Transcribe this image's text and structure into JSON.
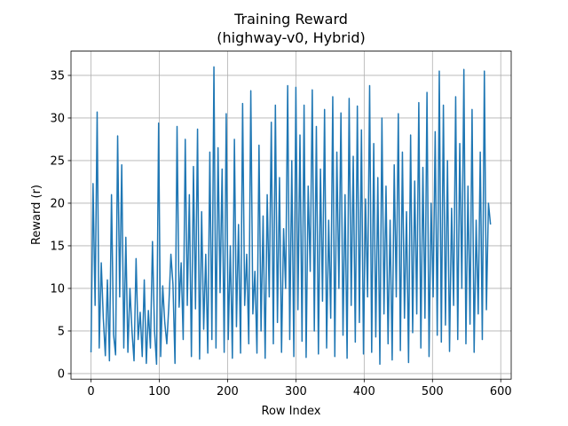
{
  "chart_data": {
    "type": "line",
    "title": [
      "Training Reward",
      "(highway-v0, Hybrid)"
    ],
    "xlabel": "Row Index",
    "ylabel": "Reward (r)",
    "x": [
      0,
      3,
      6,
      9,
      12,
      15,
      18,
      21,
      24,
      27,
      30,
      33,
      36,
      39,
      42,
      45,
      48,
      51,
      54,
      57,
      60,
      63,
      66,
      69,
      72,
      75,
      78,
      81,
      84,
      87,
      90,
      93,
      96,
      99,
      102,
      105,
      108,
      111,
      114,
      117,
      120,
      123,
      126,
      129,
      132,
      135,
      138,
      141,
      144,
      147,
      150,
      153,
      156,
      159,
      162,
      165,
      168,
      171,
      174,
      177,
      180,
      183,
      186,
      189,
      192,
      195,
      198,
      201,
      204,
      207,
      210,
      213,
      216,
      219,
      222,
      225,
      228,
      231,
      234,
      237,
      240,
      243,
      246,
      249,
      252,
      255,
      258,
      261,
      264,
      267,
      270,
      273,
      276,
      279,
      282,
      285,
      288,
      291,
      294,
      297,
      300,
      303,
      306,
      309,
      312,
      315,
      318,
      321,
      324,
      327,
      330,
      333,
      336,
      339,
      342,
      345,
      348,
      351,
      354,
      357,
      360,
      363,
      366,
      369,
      372,
      375,
      378,
      381,
      384,
      387,
      390,
      393,
      396,
      399,
      402,
      405,
      408,
      411,
      414,
      417,
      420,
      423,
      426,
      429,
      432,
      435,
      438,
      441,
      444,
      447,
      450,
      453,
      456,
      459,
      462,
      465,
      468,
      471,
      474,
      477,
      480,
      483,
      486,
      489,
      492,
      495,
      498,
      501,
      504,
      507,
      510,
      513,
      516,
      519,
      522,
      525,
      528,
      531,
      534,
      537,
      540,
      543,
      546,
      549,
      552,
      555,
      558,
      561,
      564,
      567,
      570,
      573,
      576,
      579,
      582,
      585
    ],
    "series": [
      {
        "name": "Reward",
        "color": "#1f77b4",
        "values": [
          2.5,
          22.3,
          8,
          30.7,
          3,
          13,
          6.5,
          2.1,
          11,
          1.5,
          21,
          4.6,
          2.2,
          27.9,
          9,
          24.5,
          3,
          16,
          2.5,
          10,
          5,
          1.5,
          13.5,
          4,
          7.2,
          2,
          11,
          1.2,
          7.4,
          3,
          15.5,
          5,
          1.1,
          29.4,
          2,
          10.3,
          6,
          3.5,
          8,
          14,
          10.5,
          1.2,
          29,
          7.8,
          13,
          4,
          27.5,
          8,
          21,
          2,
          24.3,
          7.6,
          28.7,
          1.7,
          19,
          5.2,
          14,
          2.4,
          26,
          4,
          36,
          3,
          26.5,
          9.5,
          24,
          2.5,
          30.5,
          4,
          15,
          1.8,
          27.5,
          5.5,
          17.5,
          2.4,
          31.7,
          8,
          14,
          3.5,
          33.2,
          7,
          12,
          2.4,
          26.8,
          5,
          18.5,
          1.8,
          21,
          9,
          29.5,
          3.5,
          31.5,
          6,
          23,
          2.5,
          17,
          10,
          33.8,
          4,
          25,
          2,
          33.6,
          7.5,
          28,
          3.8,
          31.5,
          1.9,
          22,
          12,
          33.3,
          5,
          29,
          2.3,
          24,
          8.5,
          31,
          3,
          18,
          6.5,
          32.5,
          2,
          26,
          10,
          30.6,
          4.5,
          21,
          1.8,
          32.3,
          8,
          25.5,
          3.7,
          31.4,
          6,
          28.6,
          2.3,
          20.5,
          9,
          33.8,
          2.5,
          27,
          4.3,
          23,
          1.1,
          30,
          7,
          22,
          3.5,
          18,
          1.6,
          24.5,
          9,
          30.5,
          2.7,
          26,
          6.5,
          19,
          1.3,
          28,
          4.8,
          22.6,
          7,
          31.8,
          3,
          24.2,
          6.5,
          33,
          2,
          20,
          9,
          28.4,
          4.5,
          35.5,
          3.7,
          31.5,
          5.7,
          25,
          2.6,
          19.4,
          8,
          32.5,
          4,
          27,
          10,
          35.7,
          3.5,
          22,
          5.8,
          31,
          2.5,
          18,
          7,
          26,
          4,
          35.5,
          7.5,
          20,
          17.5
        ]
      }
    ],
    "xlim": [
      -29.3,
      615.3
    ],
    "ylim": [
      -0.65,
      37.85
    ],
    "xticks": [
      0,
      100,
      200,
      300,
      400,
      500,
      600
    ],
    "yticks": [
      0,
      5,
      10,
      15,
      20,
      25,
      30,
      35
    ],
    "grid": true
  }
}
